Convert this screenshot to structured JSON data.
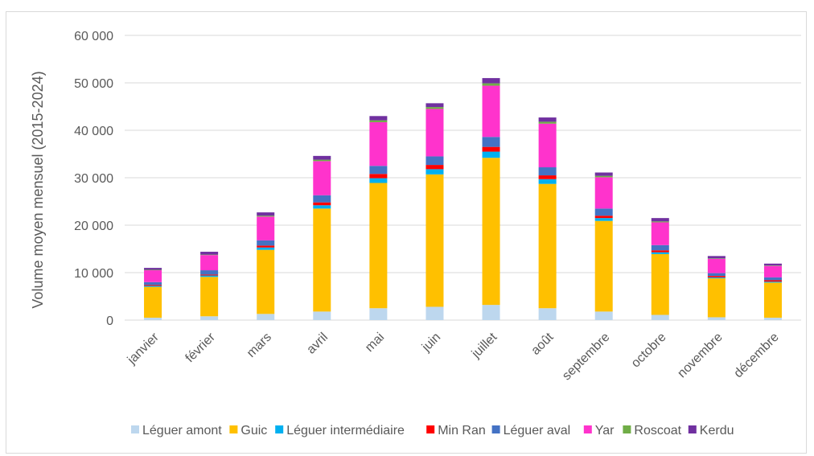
{
  "chart_data": {
    "type": "bar",
    "stacked": true,
    "title": "",
    "xlabel": "",
    "ylabel": "Volume moyen mensuel (2015-2024)",
    "ylim": [
      0,
      60000
    ],
    "yticks": [
      0,
      10000,
      20000,
      30000,
      40000,
      50000,
      60000
    ],
    "ytick_labels": [
      "0",
      "10 000",
      "20 000",
      "30 000",
      "40 000",
      "50 000",
      "60 000"
    ],
    "grid": true,
    "legend_position": "bottom",
    "categories": [
      "janvier",
      "février",
      "mars",
      "avril",
      "mai",
      "juin",
      "juillet",
      "août",
      "septembre",
      "octobre",
      "novembre",
      "décembre"
    ],
    "series": [
      {
        "name": "Léguer amont",
        "color": "#bdd7ee",
        "values": [
          500,
          800,
          1300,
          1800,
          2500,
          2800,
          3200,
          2500,
          1800,
          1100,
          600,
          500
        ]
      },
      {
        "name": "Guic",
        "color": "#ffc000",
        "values": [
          6500,
          8300,
          13500,
          21700,
          26400,
          27900,
          31000,
          26200,
          19100,
          12800,
          8200,
          7400
        ]
      },
      {
        "name": "Léguer intermédiaire",
        "color": "#00b0f0",
        "values": [
          200,
          300,
          500,
          700,
          1000,
          1100,
          1300,
          1000,
          600,
          400,
          200,
          200
        ]
      },
      {
        "name": "Min Ran",
        "color": "#ff0000",
        "values": [
          200,
          200,
          400,
          600,
          900,
          900,
          1000,
          800,
          500,
          400,
          300,
          300
        ]
      },
      {
        "name": "Léguer aval",
        "color": "#4472c4",
        "values": [
          600,
          900,
          1100,
          1500,
          1700,
          1800,
          2100,
          1700,
          1500,
          1100,
          600,
          600
        ]
      },
      {
        "name": "Yar",
        "color": "#ff33cc",
        "values": [
          2500,
          3200,
          5000,
          7200,
          9200,
          10000,
          10800,
          9200,
          6600,
          4800,
          3000,
          2400
        ]
      },
      {
        "name": "Roscoat",
        "color": "#70ad47",
        "values": [
          100,
          100,
          200,
          300,
          400,
          400,
          500,
          400,
          300,
          200,
          100,
          100
        ]
      },
      {
        "name": "Kerdu",
        "color": "#7030a0",
        "values": [
          400,
          600,
          700,
          800,
          900,
          800,
          1100,
          900,
          700,
          700,
          500,
          400
        ]
      }
    ]
  }
}
